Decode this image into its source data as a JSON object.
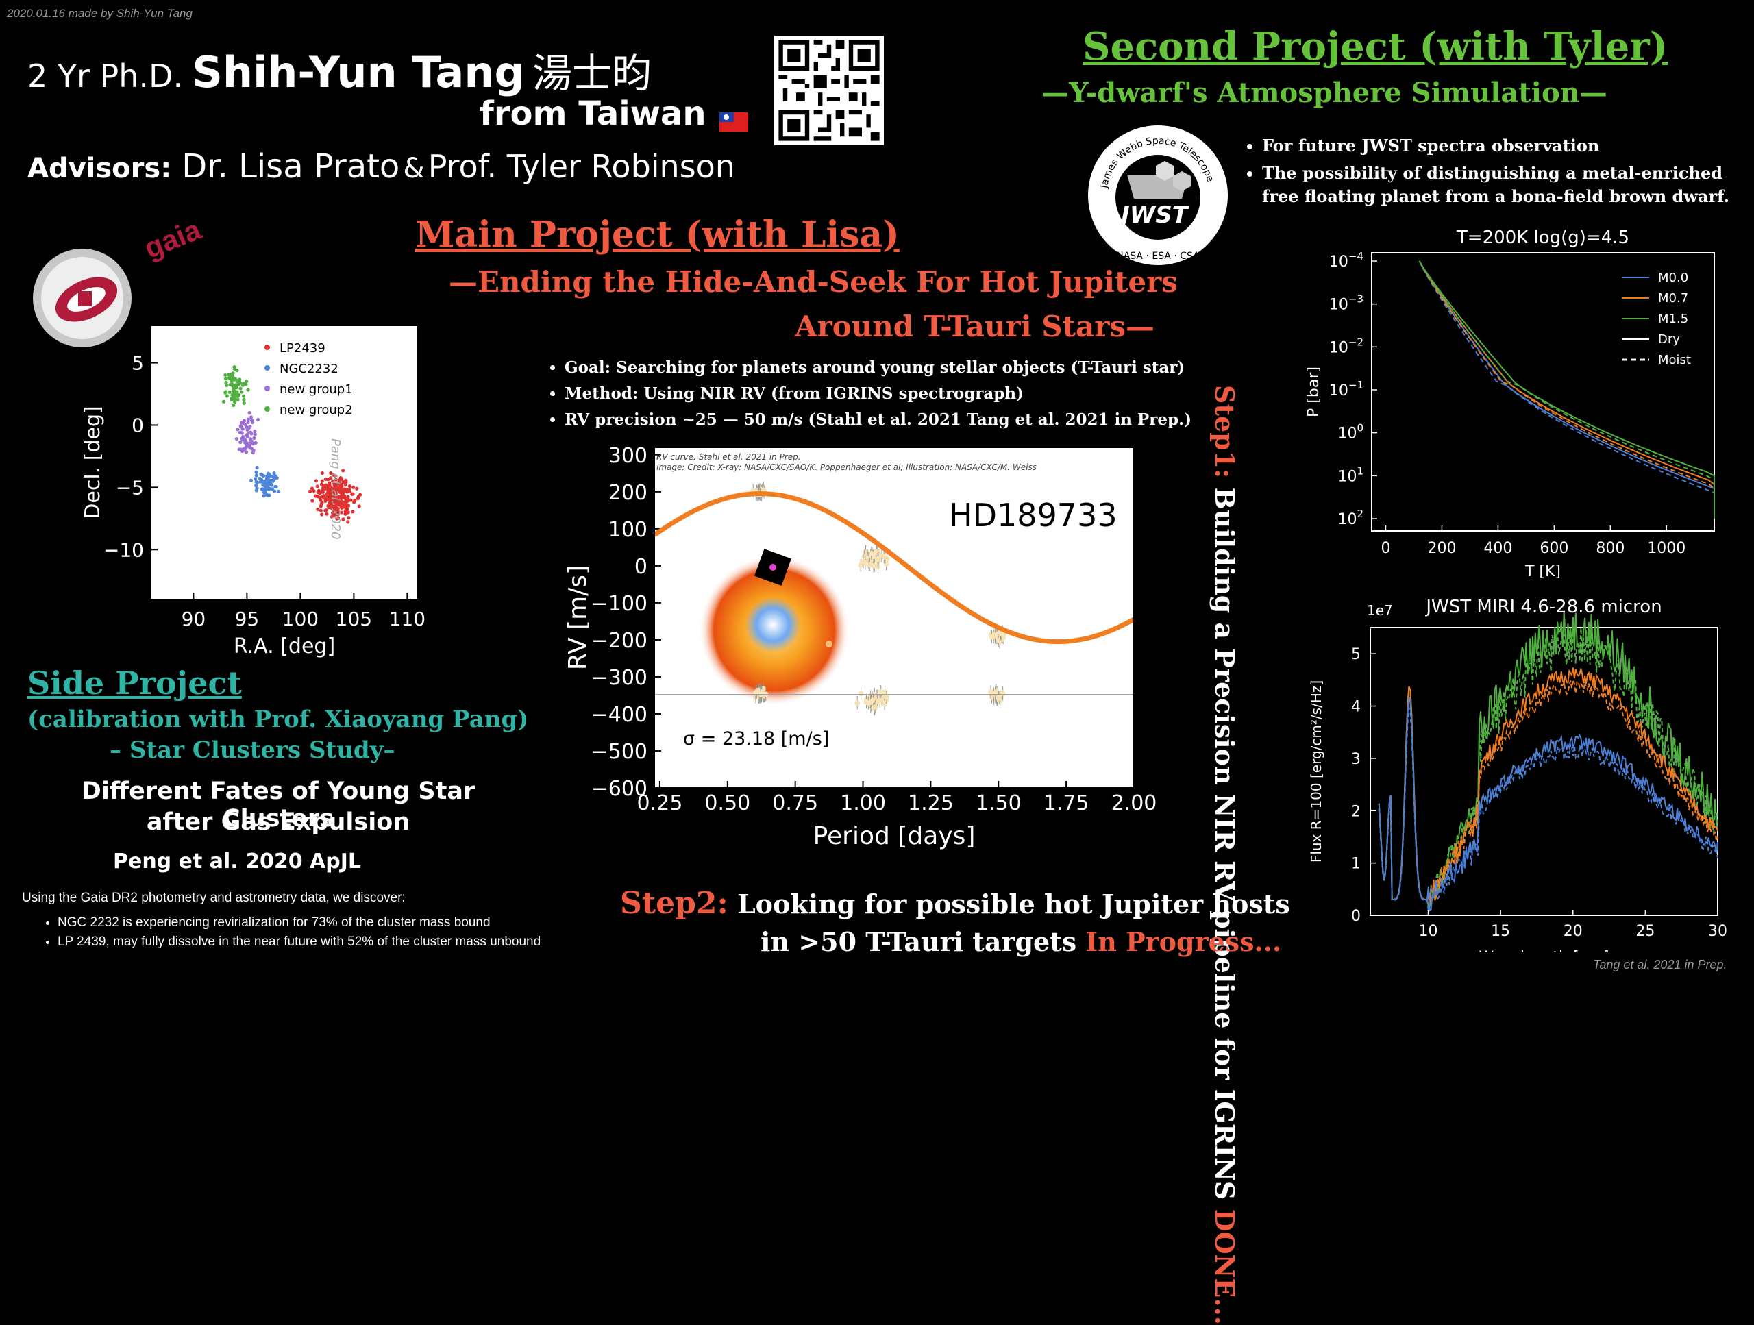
{
  "credit_top": "2020.01.16 made by Shih-Yun Tang",
  "header": {
    "degree": "2 Yr Ph.D.",
    "name": "Shih-Yun Tang",
    "name_cjk": "湯士昀",
    "origin": "from Taiwan",
    "flag": "🇹🇼",
    "advisors_label": "Advisors:",
    "advisor1": "Dr. Lisa Prato",
    "amp": "&",
    "advisor2": "Prof. Tyler Robinson"
  },
  "gaia_logo_text": "gaia",
  "cluster_plot": {
    "credit": "Pang et al. 2020",
    "xlabel": "R.A. [deg]",
    "ylabel": "Decl. [deg]",
    "xticks": [
      "90",
      "95",
      "100",
      "105",
      "110"
    ],
    "yticks": [
      "5",
      "0",
      "-5",
      "-10"
    ],
    "legend": [
      {
        "name": "LP2439",
        "color": "#e03030"
      },
      {
        "name": "NGC2232",
        "color": "#4d86d9"
      },
      {
        "name": "new group1",
        "color": "#9b6ed6"
      },
      {
        "name": "new group2",
        "color": "#4fb040"
      }
    ]
  },
  "side_project": {
    "title": "Side Project",
    "subtitle": "(calibration with Prof. Xiaoyang Pang)",
    "topic": "– Star Clusters Study–",
    "paper_title_1": "Different Fates of Young Star Clusters",
    "paper_title_2": "after Gas Expulsion",
    "citation": "Peng et al. 2020 ApJL",
    "intro": "Using the Gaia DR2 photometry and astrometry data, we discover:",
    "bullets": [
      "NGC 2232 is experiencing revirialization for 73% of the cluster mass bound",
      "LP 2439, may fully dissolve in the near future with 52% of the cluster mass unbound"
    ]
  },
  "main_project": {
    "title": "Main Project (with Lisa)",
    "subtitle_1": "—Ending the Hide-And-Seek For Hot Jupiters",
    "subtitle_2": "Around T-Tauri Stars—",
    "bullets": [
      "Goal: Searching for planets around young stellar objects (T-Tauri star)",
      "Method: Using NIR RV (from IGRINS spectrograph)",
      "RV precision ~25 — 50 m/s (Stahl et al. 2021 Tang et al. 2021 in Prep.)"
    ]
  },
  "rv_plot": {
    "credit_1": "RV curve: Stahl et al. 2021 in Prep.",
    "credit_2": "image: Credit: X-ray: NASA/CXC/SAO/K. Poppenhaeger et al; Illustration: NASA/CXC/M. Weiss",
    "target": "HD189733",
    "sigma": "σ = 23.18 [m/s]",
    "xlabel": "Period [days]",
    "ylabel": "RV [m/s]",
    "xticks": [
      "0.25",
      "0.50",
      "0.75",
      "1.00",
      "1.25",
      "1.50",
      "1.75",
      "2.00"
    ],
    "yticks": [
      "300",
      "200",
      "100",
      "0",
      "-100",
      "-200",
      "-300",
      "-400",
      "-500",
      "-600"
    ]
  },
  "step1": {
    "label": "Step1:",
    "text": "Building a Precision NIR RV pipeline for IGRINS",
    "status": "DONE..."
  },
  "step2": {
    "label": "Step2:",
    "text1": "Looking for possible hot Jupiter hosts",
    "text2": "in >50 T-Tauri targets",
    "status": "In Progress..."
  },
  "second_project": {
    "title": "Second Project (with Tyler)",
    "subtitle": "—Y-dwarf's Atmosphere Simulation—",
    "jwst_ring": "James Webb Space Telescope",
    "jwst_logo": "JWST",
    "jwst_partners": "NASA · ESA · CSA",
    "bullets": [
      "For future JWST spectra observation",
      "The possibility of distinguishing a metal-enriched free floating planet from a bona-field brown dwarf."
    ]
  },
  "pt_plot": {
    "title": "T=200K log(g)=4.5",
    "xlabel": "T [K]",
    "ylabel": "P [bar]",
    "xticks": [
      "0",
      "200",
      "400",
      "600",
      "800",
      "1000"
    ],
    "yticks": [
      "10-4",
      "10-3",
      "10-2",
      "10-1",
      "100",
      "101",
      "102"
    ],
    "legend": [
      {
        "name": "M0.0",
        "color": "#4a7fd4"
      },
      {
        "name": "M0.7",
        "color": "#f07d20"
      },
      {
        "name": "M1.5",
        "color": "#4fb040"
      },
      {
        "name": "Dry",
        "color": "#ffffff"
      },
      {
        "name": "Moist",
        "color": "#ffffff"
      }
    ]
  },
  "spec_plot": {
    "title": "JWST MIRI 4.6-28.6 micron",
    "scale": "1e7",
    "xlabel": "Wavelength [μm]",
    "ylabel": "Flux R=100 [erg/cm²/s/Hz]",
    "xticks": [
      "10",
      "15",
      "20",
      "25",
      "30"
    ],
    "yticks": [
      "0",
      "1",
      "2",
      "3",
      "4",
      "5"
    ]
  },
  "credit_bottom": "Tang et al. 2021 in Prep."
}
